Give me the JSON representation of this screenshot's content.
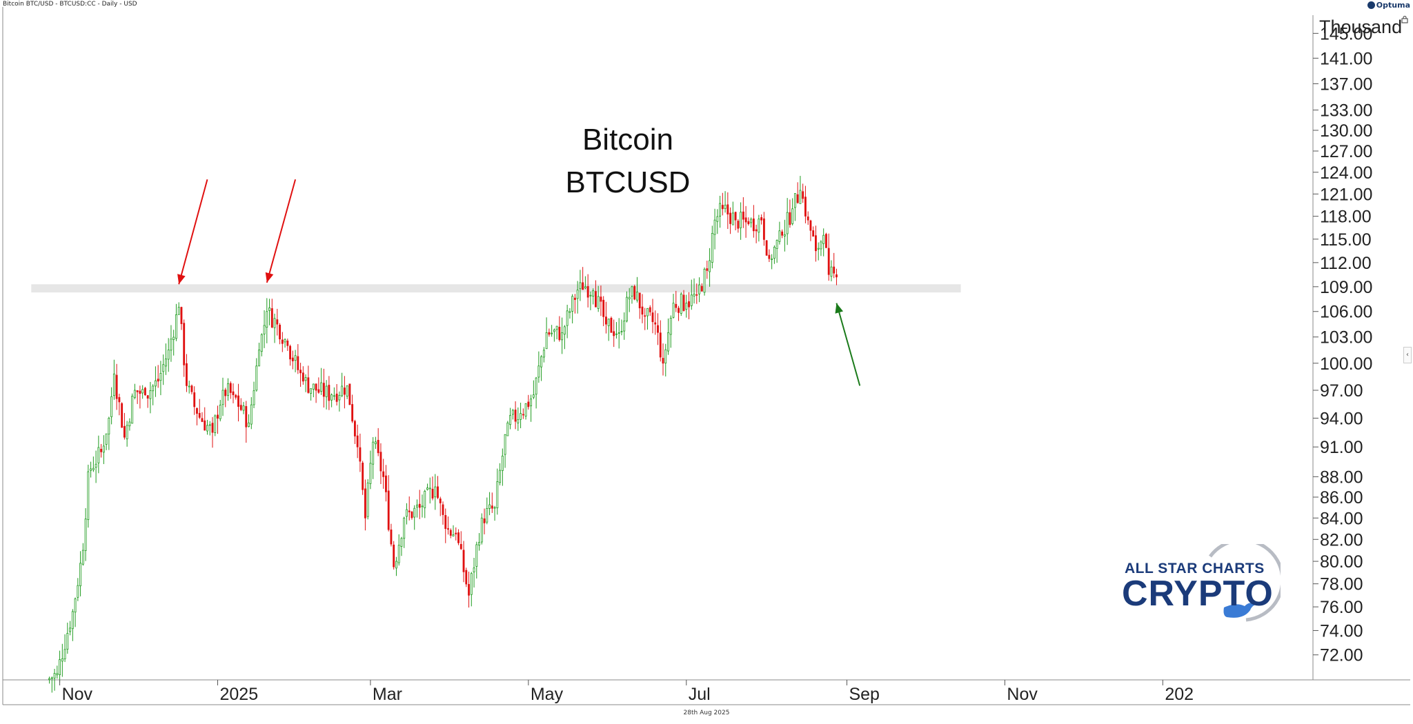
{
  "header": {
    "instrument_text": "Bitcoin BTC/USD - BTCUSD:CC - Daily - USD",
    "brand": "Optuma"
  },
  "footer": {
    "date": "28th Aug 2025"
  },
  "logo": {
    "line1": "ALL STAR CHARTS",
    "line2": "CRYPTO"
  },
  "colors": {
    "up": "#1e9b1e",
    "down": "#e01010",
    "arrow_down": "#e01010",
    "arrow_up": "#1a7a1a",
    "zone": "#e6e6e6"
  },
  "chart_data": {
    "type": "candlestick",
    "title": "Bitcoin",
    "subtitle": "BTCUSD",
    "y_unit_label": "Thousand",
    "y_scale": "log",
    "ylim": [
      70.0,
      148.0
    ],
    "y_ticks": [
      "145.00",
      "141.00",
      "137.00",
      "133.00",
      "130.00",
      "127.00",
      "124.00",
      "121.00",
      "118.00",
      "115.00",
      "112.00",
      "109.00",
      "106.00",
      "103.00",
      "100.00",
      "97.00",
      "94.00",
      "91.00",
      "88.00",
      "86.00",
      "84.00",
      "82.00",
      "80.00",
      "78.00",
      "76.00",
      "74.00",
      "72.00"
    ],
    "x_ticks": [
      "Nov",
      "2025",
      "Mar",
      "May",
      "Jul",
      "Sep",
      "Nov",
      "202"
    ],
    "x_range": [
      "2024-10-10",
      "2026-02-28"
    ],
    "x_tick_dates": [
      "2024-11-01",
      "2025-01-01",
      "2025-03-01",
      "2025-05-01",
      "2025-07-01",
      "2025-09-01",
      "2025-11-01",
      "2026-01-01"
    ],
    "resistance_zone": [
      108.3,
      109.3
    ],
    "resistance_zone_dates": [
      "2024-10-21",
      "2025-10-15"
    ],
    "annotations": [
      {
        "kind": "arrow",
        "color": "red",
        "tip_date": "2024-12-17",
        "tip_value": 109.3,
        "from_date": "2024-12-28",
        "from_value": 123.0
      },
      {
        "kind": "arrow",
        "color": "red",
        "tip_date": "2025-01-20",
        "tip_value": 109.5,
        "from_date": "2025-01-31",
        "from_value": 123.0
      },
      {
        "kind": "arrow",
        "color": "green",
        "tip_date": "2025-08-28",
        "tip_value": 107.0,
        "from_date": "2025-09-06",
        "from_value": 97.5
      }
    ],
    "series": [
      {
        "date": "2024-10-27",
        "value": 70.0
      },
      {
        "date": "2024-10-31",
        "value": 70.5
      },
      {
        "date": "2024-11-06",
        "value": 75.6
      },
      {
        "date": "2024-11-10",
        "value": 81.0
      },
      {
        "date": "2024-11-12",
        "value": 88.5
      },
      {
        "date": "2024-11-17",
        "value": 90.5
      },
      {
        "date": "2024-11-20",
        "value": 94.0
      },
      {
        "date": "2024-11-22",
        "value": 98.8
      },
      {
        "date": "2024-11-26",
        "value": 92.0
      },
      {
        "date": "2024-11-30",
        "value": 97.0
      },
      {
        "date": "2024-12-04",
        "value": 96.5
      },
      {
        "date": "2024-12-09",
        "value": 98.0
      },
      {
        "date": "2024-12-13",
        "value": 101.5
      },
      {
        "date": "2024-12-17",
        "value": 106.5
      },
      {
        "date": "2024-12-20",
        "value": 97.5
      },
      {
        "date": "2024-12-24",
        "value": 94.5
      },
      {
        "date": "2024-12-30",
        "value": 92.5
      },
      {
        "date": "2025-01-03",
        "value": 97.0
      },
      {
        "date": "2025-01-07",
        "value": 96.5
      },
      {
        "date": "2025-01-13",
        "value": 93.5
      },
      {
        "date": "2025-01-17",
        "value": 101.5
      },
      {
        "date": "2025-01-20",
        "value": 106.0
      },
      {
        "date": "2025-01-24",
        "value": 104.5
      },
      {
        "date": "2025-01-28",
        "value": 102.0
      },
      {
        "date": "2025-02-03",
        "value": 98.0
      },
      {
        "date": "2025-02-08",
        "value": 97.0
      },
      {
        "date": "2025-02-14",
        "value": 96.5
      },
      {
        "date": "2025-02-20",
        "value": 97.5
      },
      {
        "date": "2025-02-24",
        "value": 91.0
      },
      {
        "date": "2025-02-27",
        "value": 84.0
      },
      {
        "date": "2025-03-02",
        "value": 91.5
      },
      {
        "date": "2025-03-06",
        "value": 88.0
      },
      {
        "date": "2025-03-10",
        "value": 79.5
      },
      {
        "date": "2025-03-14",
        "value": 84.0
      },
      {
        "date": "2025-03-20",
        "value": 85.0
      },
      {
        "date": "2025-03-26",
        "value": 87.0
      },
      {
        "date": "2025-03-30",
        "value": 83.0
      },
      {
        "date": "2025-04-03",
        "value": 82.5
      },
      {
        "date": "2025-04-08",
        "value": 77.0
      },
      {
        "date": "2025-04-13",
        "value": 84.0
      },
      {
        "date": "2025-04-18",
        "value": 85.0
      },
      {
        "date": "2025-04-23",
        "value": 93.5
      },
      {
        "date": "2025-04-28",
        "value": 94.5
      },
      {
        "date": "2025-05-03",
        "value": 96.5
      },
      {
        "date": "2025-05-08",
        "value": 103.5
      },
      {
        "date": "2025-05-14",
        "value": 103.5
      },
      {
        "date": "2025-05-21",
        "value": 109.5
      },
      {
        "date": "2025-05-26",
        "value": 108.5
      },
      {
        "date": "2025-05-31",
        "value": 104.5
      },
      {
        "date": "2025-06-05",
        "value": 103.5
      },
      {
        "date": "2025-06-10",
        "value": 109.0
      },
      {
        "date": "2025-06-15",
        "value": 105.5
      },
      {
        "date": "2025-06-19",
        "value": 104.5
      },
      {
        "date": "2025-06-22",
        "value": 100.0
      },
      {
        "date": "2025-06-26",
        "value": 107.0
      },
      {
        "date": "2025-07-01",
        "value": 107.0
      },
      {
        "date": "2025-07-05",
        "value": 108.0
      },
      {
        "date": "2025-07-09",
        "value": 111.0
      },
      {
        "date": "2025-07-12",
        "value": 117.5
      },
      {
        "date": "2025-07-15",
        "value": 119.0
      },
      {
        "date": "2025-07-20",
        "value": 117.5
      },
      {
        "date": "2025-07-25",
        "value": 117.0
      },
      {
        "date": "2025-07-30",
        "value": 117.5
      },
      {
        "date": "2025-08-02",
        "value": 112.5
      },
      {
        "date": "2025-08-07",
        "value": 115.5
      },
      {
        "date": "2025-08-11",
        "value": 119.0
      },
      {
        "date": "2025-08-14",
        "value": 121.5
      },
      {
        "date": "2025-08-17",
        "value": 117.5
      },
      {
        "date": "2025-08-20",
        "value": 113.5
      },
      {
        "date": "2025-08-23",
        "value": 115.5
      },
      {
        "date": "2025-08-25",
        "value": 110.5
      },
      {
        "date": "2025-08-28",
        "value": 110.2
      }
    ]
  }
}
